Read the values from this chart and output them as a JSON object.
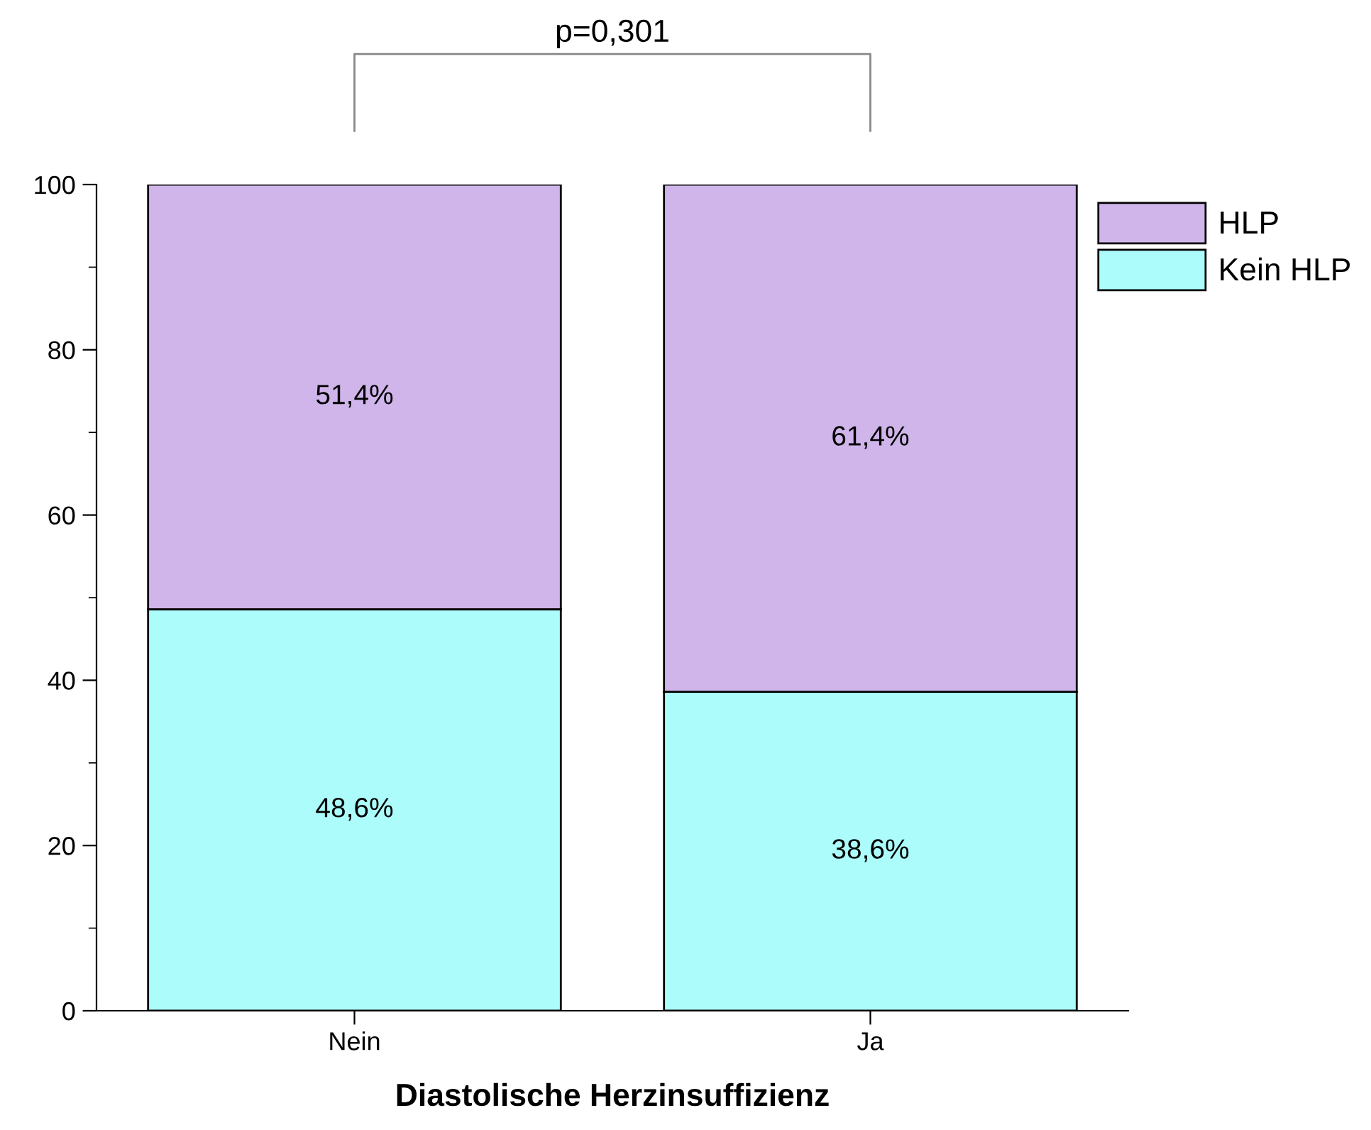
{
  "chart_data": {
    "type": "bar",
    "stacked": true,
    "categories": [
      "Nein",
      "Ja"
    ],
    "xlabel": "Diastolische Herzinsuffizienz",
    "series": [
      {
        "name": "Kein HLP",
        "color": "#adfcfc",
        "values": [
          48.6,
          38.6
        ],
        "value_labels": [
          "48,6%",
          "38,6%"
        ]
      },
      {
        "name": "HLP",
        "color": "#d0b5eb",
        "values": [
          51.4,
          61.4
        ],
        "value_labels": [
          "51,4%",
          "61,4%"
        ]
      }
    ],
    "ylim": [
      0,
      100
    ],
    "yticks": [
      0,
      20,
      40,
      60,
      80,
      100
    ],
    "grid": false,
    "legend": "top right",
    "annotations": [
      "p=0,301"
    ]
  }
}
